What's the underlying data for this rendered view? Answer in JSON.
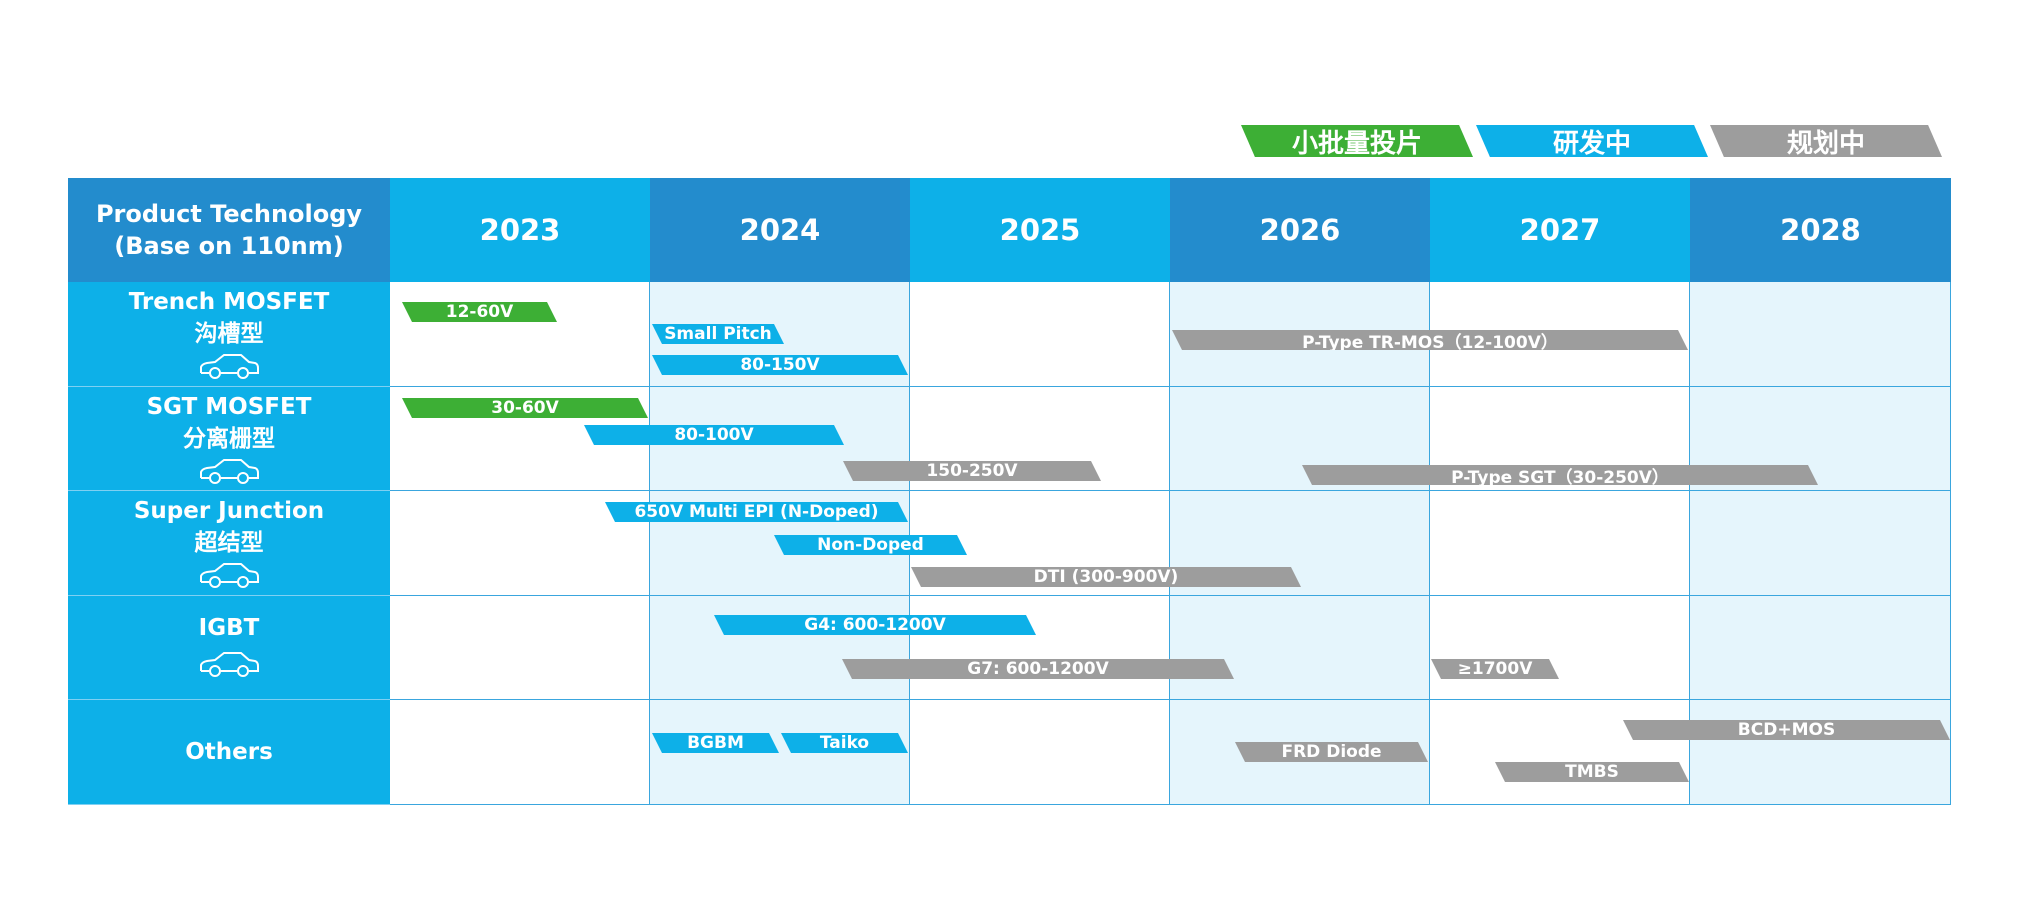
{
  "legend": [
    {
      "label": "小批量投片",
      "color": "#3daf35"
    },
    {
      "label": "研发中",
      "color": "#0db0e8"
    },
    {
      "label": "规划中",
      "color": "#9d9d9d"
    }
  ],
  "header": {
    "corner_line1": "Product Technology",
    "corner_line2": "(Base on 110nm)",
    "years": [
      "2023",
      "2024",
      "2025",
      "2026",
      "2027",
      "2028"
    ]
  },
  "rows": [
    {
      "en": "Trench MOSFET",
      "cn": "沟槽型",
      "icon": "car-icon"
    },
    {
      "en": "SGT MOSFET",
      "cn": "分离栅型",
      "icon": "car-icon"
    },
    {
      "en": "Super Junction",
      "cn": "超结型",
      "icon": "car-icon"
    },
    {
      "en": "IGBT",
      "cn": "",
      "icon": "car-icon"
    },
    {
      "en": "Others",
      "cn": "",
      "icon": ""
    }
  ],
  "bars": [
    {
      "row": 0,
      "label": "12-60V",
      "status": "green"
    },
    {
      "row": 0,
      "label": "Small Pitch",
      "status": "blue"
    },
    {
      "row": 0,
      "label": "80-150V",
      "status": "blue"
    },
    {
      "row": 0,
      "label": "P-Type TR-MOS（12-100V）",
      "status": "gray"
    },
    {
      "row": 1,
      "label": "30-60V",
      "status": "green"
    },
    {
      "row": 1,
      "label": "80-100V",
      "status": "blue"
    },
    {
      "row": 1,
      "label": "150-250V",
      "status": "gray"
    },
    {
      "row": 1,
      "label": "P-Type SGT（30-250V）",
      "status": "gray"
    },
    {
      "row": 2,
      "label": "650V Multi EPI (N-Doped)",
      "status": "blue"
    },
    {
      "row": 2,
      "label": "Non-Doped",
      "status": "blue"
    },
    {
      "row": 2,
      "label": "DTI (300-900V)",
      "status": "gray"
    },
    {
      "row": 3,
      "label": "G4: 600-1200V",
      "status": "blue"
    },
    {
      "row": 3,
      "label": "G7: 600-1200V",
      "status": "gray"
    },
    {
      "row": 3,
      "label": "≥1700V",
      "status": "gray"
    },
    {
      "row": 4,
      "label": "BGBM",
      "status": "blue"
    },
    {
      "row": 4,
      "label": "Taiko",
      "status": "blue"
    },
    {
      "row": 4,
      "label": "FRD Diode",
      "status": "gray"
    },
    {
      "row": 4,
      "label": "BCD+MOS",
      "status": "gray"
    },
    {
      "row": 4,
      "label": "TMBS",
      "status": "gray"
    }
  ]
}
